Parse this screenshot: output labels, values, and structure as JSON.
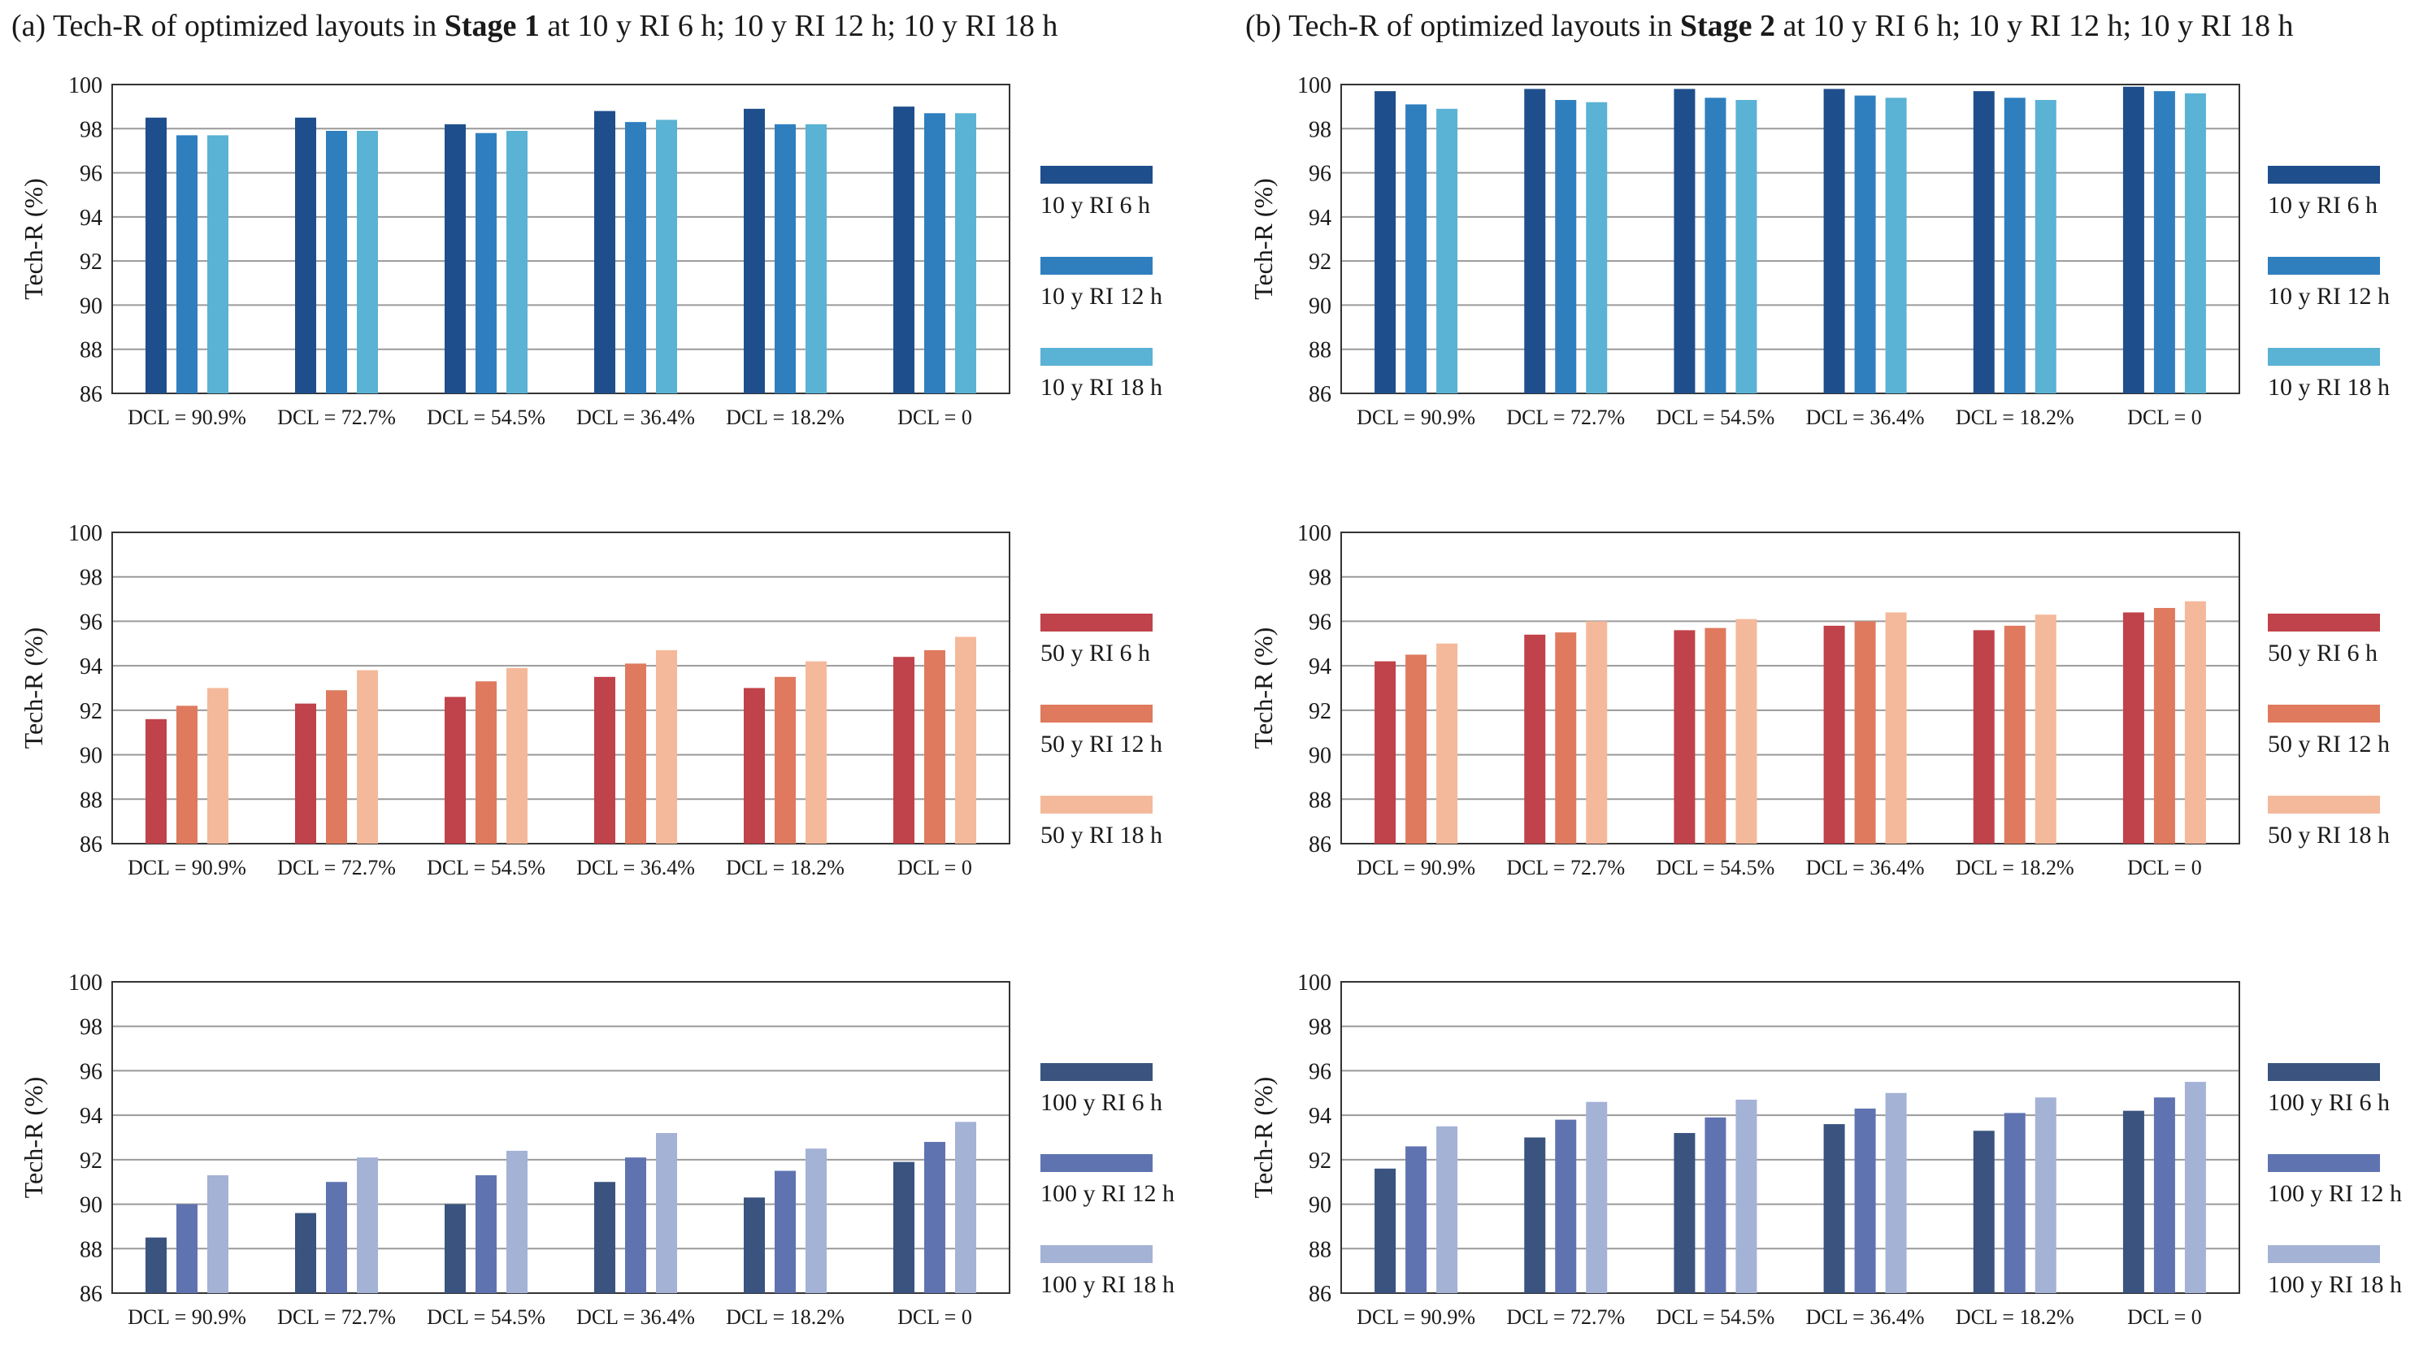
{
  "panels": [
    {
      "id": "a",
      "title_prefix": "(a) Tech-R of optimized layouts in ",
      "title_bold": "Stage 1",
      "title_suffix": " at 10 y RI 6 h; 10 y RI 12 h; 10 y RI 18 h"
    },
    {
      "id": "b",
      "title_prefix": "(b) Tech-R of optimized layouts in ",
      "title_bold": "Stage 2",
      "title_suffix": " at 10 y RI 6 h; 10 y RI 12 h; 10 y RI 18 h"
    }
  ],
  "colors": {
    "10y": [
      "#1f4e8c",
      "#2f7fbf",
      "#5ab2d4"
    ],
    "50y": [
      "#c0424a",
      "#df7a5e",
      "#f4b99a"
    ],
    "100y": [
      "#3a537f",
      "#6073b1",
      "#a4b2d6"
    ]
  },
  "chart_data": [
    {
      "type": "bar",
      "panel": "a",
      "row": 0,
      "palette": "10y",
      "title": "",
      "xlabel": "",
      "ylabel": "Tech-R (%)",
      "ylim": [
        86,
        100
      ],
      "yticks": [
        86,
        88,
        90,
        92,
        94,
        96,
        98,
        100
      ],
      "grid": true,
      "legend": "right",
      "categories": [
        "DCL = 90.9%",
        "DCL = 72.7%",
        "DCL = 54.5%",
        "DCL = 36.4%",
        "DCL = 18.2%",
        "DCL = 0"
      ],
      "series": [
        {
          "name": "10 y RI 6 h",
          "values": [
            98.5,
            98.5,
            98.2,
            98.8,
            98.9,
            99.0
          ]
        },
        {
          "name": "10 y RI 12 h",
          "values": [
            97.7,
            97.9,
            97.8,
            98.3,
            98.2,
            98.7
          ]
        },
        {
          "name": "10 y RI 18 h",
          "values": [
            97.7,
            97.9,
            97.9,
            98.4,
            98.2,
            98.7
          ]
        }
      ]
    },
    {
      "type": "bar",
      "panel": "a",
      "row": 1,
      "palette": "50y",
      "title": "",
      "xlabel": "",
      "ylabel": "Tech-R (%)",
      "ylim": [
        86,
        100
      ],
      "yticks": [
        86,
        88,
        90,
        92,
        94,
        96,
        98,
        100
      ],
      "grid": true,
      "legend": "right",
      "categories": [
        "DCL = 90.9%",
        "DCL = 72.7%",
        "DCL = 54.5%",
        "DCL = 36.4%",
        "DCL = 18.2%",
        "DCL = 0"
      ],
      "series": [
        {
          "name": "50 y RI 6 h",
          "values": [
            91.6,
            92.3,
            92.6,
            93.5,
            93.0,
            94.4
          ]
        },
        {
          "name": "50 y RI 12 h",
          "values": [
            92.2,
            92.9,
            93.3,
            94.1,
            93.5,
            94.7
          ]
        },
        {
          "name": "50 y RI 18 h",
          "values": [
            93.0,
            93.8,
            93.9,
            94.7,
            94.2,
            95.3
          ]
        }
      ]
    },
    {
      "type": "bar",
      "panel": "a",
      "row": 2,
      "palette": "100y",
      "title": "",
      "xlabel": "",
      "ylabel": "Tech-R (%)",
      "ylim": [
        86,
        100
      ],
      "yticks": [
        86,
        88,
        90,
        92,
        94,
        96,
        98,
        100
      ],
      "grid": true,
      "legend": "right",
      "categories": [
        "DCL = 90.9%",
        "DCL = 72.7%",
        "DCL = 54.5%",
        "DCL = 36.4%",
        "DCL = 18.2%",
        "DCL = 0"
      ],
      "series": [
        {
          "name": "100 y RI 6 h",
          "values": [
            88.5,
            89.6,
            90.0,
            91.0,
            90.3,
            91.9
          ]
        },
        {
          "name": "100 y RI 12 h",
          "values": [
            90.0,
            91.0,
            91.3,
            92.1,
            91.5,
            92.8
          ]
        },
        {
          "name": "100 y RI 18 h",
          "values": [
            91.3,
            92.1,
            92.4,
            93.2,
            92.5,
            93.7
          ]
        }
      ]
    },
    {
      "type": "bar",
      "panel": "b",
      "row": 0,
      "palette": "10y",
      "title": "",
      "xlabel": "",
      "ylabel": "Tech-R (%)",
      "ylim": [
        86,
        100
      ],
      "yticks": [
        86,
        88,
        90,
        92,
        94,
        96,
        98,
        100
      ],
      "grid": true,
      "legend": "right",
      "categories": [
        "DCL = 90.9%",
        "DCL = 72.7%",
        "DCL = 54.5%",
        "DCL = 36.4%",
        "DCL = 18.2%",
        "DCL = 0"
      ],
      "series": [
        {
          "name": "10 y RI 6 h",
          "values": [
            99.7,
            99.8,
            99.8,
            99.8,
            99.7,
            99.9
          ]
        },
        {
          "name": "10 y RI 12 h",
          "values": [
            99.1,
            99.3,
            99.4,
            99.5,
            99.4,
            99.7
          ]
        },
        {
          "name": "10 y RI 18 h",
          "values": [
            98.9,
            99.2,
            99.3,
            99.4,
            99.3,
            99.6
          ]
        }
      ]
    },
    {
      "type": "bar",
      "panel": "b",
      "row": 1,
      "palette": "50y",
      "title": "",
      "xlabel": "",
      "ylabel": "Tech-R (%)",
      "ylim": [
        86,
        100
      ],
      "yticks": [
        86,
        88,
        90,
        92,
        94,
        96,
        98,
        100
      ],
      "grid": true,
      "legend": "right",
      "categories": [
        "DCL = 90.9%",
        "DCL = 72.7%",
        "DCL = 54.5%",
        "DCL = 36.4%",
        "DCL = 18.2%",
        "DCL = 0"
      ],
      "series": [
        {
          "name": "50 y RI 6 h",
          "values": [
            94.2,
            95.4,
            95.6,
            95.8,
            95.6,
            96.4
          ]
        },
        {
          "name": "50 y RI 12 h",
          "values": [
            94.5,
            95.5,
            95.7,
            96.0,
            95.8,
            96.6
          ]
        },
        {
          "name": "50 y RI 18 h",
          "values": [
            95.0,
            96.0,
            96.1,
            96.4,
            96.3,
            96.9
          ]
        }
      ]
    },
    {
      "type": "bar",
      "panel": "b",
      "row": 2,
      "palette": "100y",
      "title": "",
      "xlabel": "",
      "ylabel": "Tech-R (%)",
      "ylim": [
        86,
        100
      ],
      "yticks": [
        86,
        88,
        90,
        92,
        94,
        96,
        98,
        100
      ],
      "grid": true,
      "legend": "right",
      "categories": [
        "DCL = 90.9%",
        "DCL = 72.7%",
        "DCL = 54.5%",
        "DCL = 36.4%",
        "DCL = 18.2%",
        "DCL = 0"
      ],
      "series": [
        {
          "name": "100 y RI 6 h",
          "values": [
            91.6,
            93.0,
            93.2,
            93.6,
            93.3,
            94.2
          ]
        },
        {
          "name": "100 y RI 12 h",
          "values": [
            92.6,
            93.8,
            93.9,
            94.3,
            94.1,
            94.8
          ]
        },
        {
          "name": "100 y RI 18 h",
          "values": [
            93.5,
            94.6,
            94.7,
            95.0,
            94.8,
            95.5
          ]
        }
      ]
    }
  ]
}
